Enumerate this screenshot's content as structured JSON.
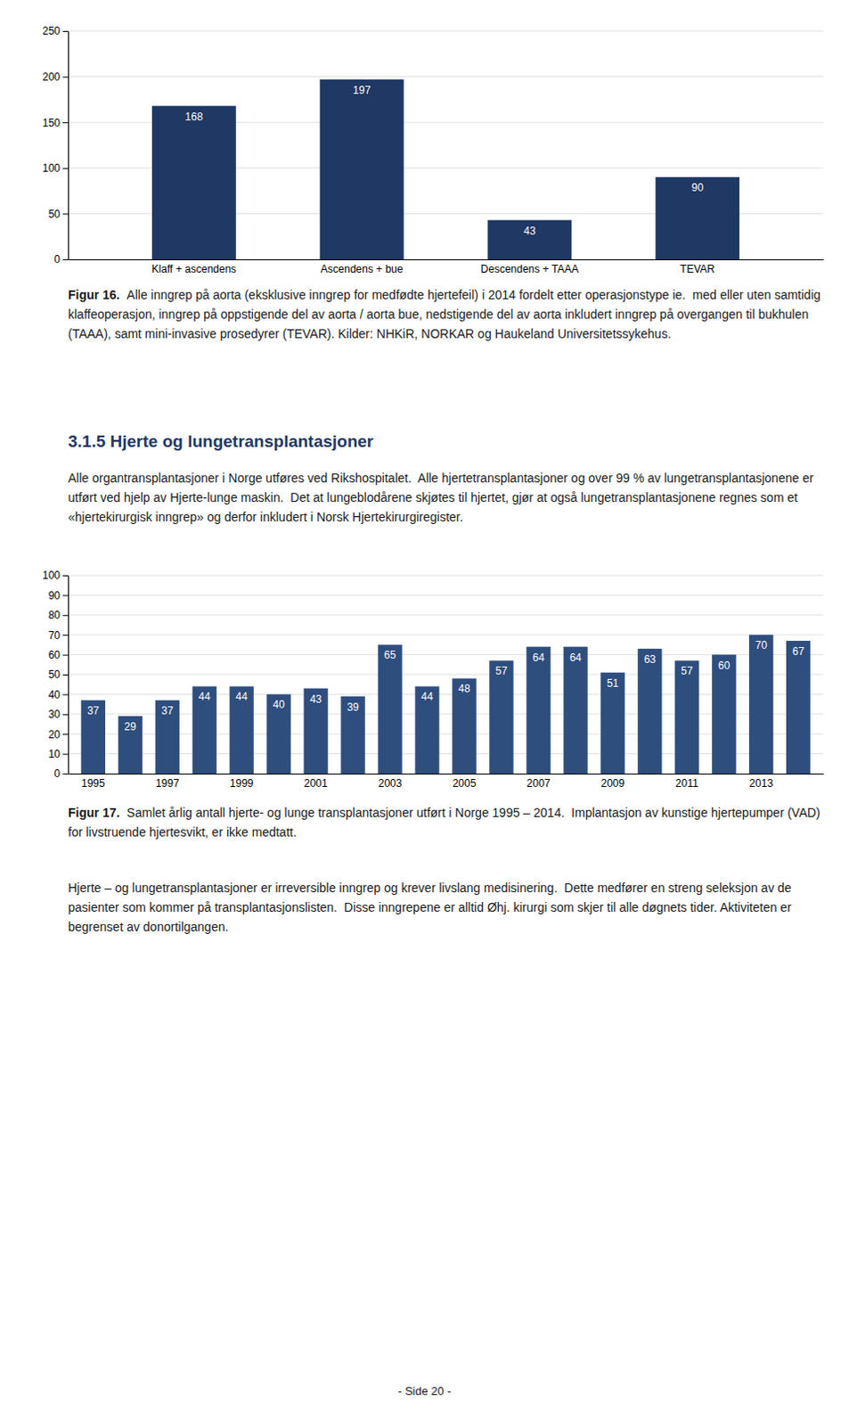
{
  "chart_data": [
    {
      "type": "bar",
      "categories": [
        "Klaff + ascendens",
        "Ascendens + bue",
        "Descendens + TAAA",
        "TEVAR"
      ],
      "values": [
        168,
        197,
        43,
        90
      ],
      "color": "#1F3864",
      "ylim": [
        0,
        250
      ],
      "yticks": [
        0,
        50,
        100,
        150,
        200,
        250
      ],
      "grid": true,
      "data_labels": true,
      "caption_label": "Figur 16.",
      "caption": "Alle inngrep på aorta (eksklusive inngrep for medfødte hjertefeil) i 2014 fordelt etter operasjonstype ie.  med eller uten samtidig klaffeoperasjon, inngrep på oppstigende del av aorta / aorta bue, nedstigende del av aorta inkludert inngrep på overgangen til bukhulen (TAAA), samt mini-invasive prosedyrer (TEVAR). Kilder: NHKiR, NORKAR og Haukeland Universitetssykehus."
    },
    {
      "type": "bar",
      "categories": [
        "1995",
        null,
        "1997",
        null,
        "1999",
        null,
        "2001",
        null,
        "2003",
        null,
        "2005",
        null,
        "2007",
        null,
        "2009",
        null,
        "2011",
        null,
        "2013",
        null
      ],
      "values": [
        37,
        29,
        37,
        44,
        44,
        40,
        43,
        39,
        65,
        44,
        48,
        57,
        64,
        64,
        51,
        63,
        57,
        60,
        70,
        67
      ],
      "color": "#2E4E7E",
      "ylim": [
        0,
        100
      ],
      "yticks": [
        0,
        10,
        20,
        30,
        40,
        50,
        60,
        70,
        80,
        90,
        100
      ],
      "grid": true,
      "data_labels": true,
      "caption_label": "Figur 17.",
      "caption": "Samlet årlig antall hjerte- og lunge transplantasjoner utført i Norge 1995 – 2014.  Implantasjon av kunstige hjertepumper (VAD) for livstruende hjertesvikt, er ikke medtatt."
    }
  ],
  "heading": "3.1.5 Hjerte og lungetransplantasjoner",
  "paragraphs": [
    "Alle organtransplantasjoner i Norge utføres ved Rikshospitalet.  Alle hjertetransplantasjoner og over 99 % av lungetransplantasjonene er utført ved hjelp av Hjerte-lunge maskin.  Det at lungeblodårene skjøtes til hjertet, gjør at også lungetransplantasjonene regnes som et «hjertekirurgisk inngrep» og derfor inkludert i Norsk Hjertekirurgiregister.",
    "Hjerte – og lungetransplantasjoner er irreversible inngrep og krever livslang medisinering.  Dette medfører en streng seleksjon av de pasienter som kommer på transplantasjonslisten.  Disse inngrepene er alltid Øhj. kirurgi som skjer til alle døgnets tider. Aktiviteten er begrenset av donortilgangen."
  ],
  "page_number": "- Side 20 -"
}
